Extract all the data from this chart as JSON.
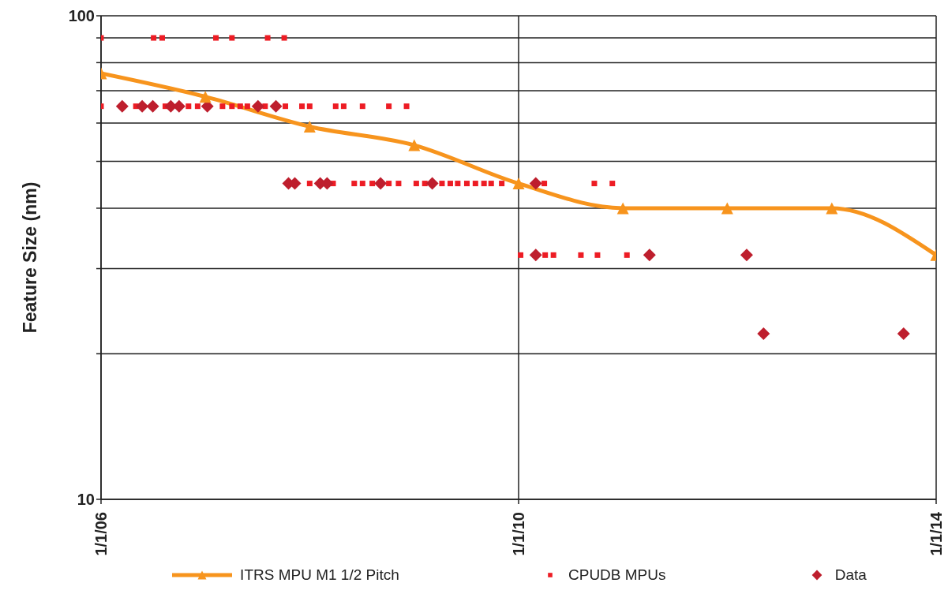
{
  "chart_data": {
    "type": "scatter",
    "ylabel": "Feature Size (nm)",
    "log": "y",
    "grid": true,
    "legend": "bottom",
    "xlim": [
      "2006-01-01",
      "2014-01-01"
    ],
    "xticks": [
      {
        "value": "2006-01-01",
        "label": "1/1/06"
      },
      {
        "value": "2010-01-01",
        "label": "1/1/10"
      },
      {
        "value": "2014-01-01",
        "label": "1/1/14"
      }
    ],
    "ylim": [
      10,
      100
    ],
    "yticks": [
      10,
      {
        "value": 20,
        "label": null
      },
      {
        "value": 30,
        "label": null
      },
      {
        "value": 40,
        "label": null
      },
      {
        "value": 50,
        "label": null
      },
      {
        "value": 60,
        "label": null
      },
      {
        "value": 70,
        "label": null
      },
      {
        "value": 80,
        "label": null
      },
      {
        "value": 90,
        "label": null
      },
      100
    ],
    "series": [
      {
        "name": "ITRS MPU M1 1/2 Pitch",
        "type": "line",
        "marker": "triangle",
        "line_style": "solid",
        "color": "#f7941d",
        "x": [
          "2006-01-01",
          "2007-01-01",
          "2008-01-01",
          "2009-01-01",
          "2010-01-01",
          "2011-01-01",
          "2012-01-01",
          "2013-01-01",
          "2014-01-01"
        ],
        "values": [
          76,
          68,
          59,
          54,
          45,
          40,
          40,
          40,
          32
        ]
      },
      {
        "name": "CPUDB MPUs",
        "marker": "square",
        "color": "#ed1c24",
        "x": [
          "2006-01-01",
          "2006-07-04",
          "2006-08-03",
          "2007-02-07",
          "2007-04-04",
          "2007-08-07",
          "2007-10-04",
          "2006-01-01",
          "2006-05-03",
          "2006-06-20",
          "2006-08-14",
          "2006-10-11",
          "2006-11-03",
          "2006-12-05",
          "2007-03-02",
          "2007-04-04",
          "2007-05-03",
          "2007-05-28",
          "2007-07-29",
          "2007-10-08",
          "2007-12-05",
          "2008-01-01",
          "2008-04-01",
          "2008-04-29",
          "2008-07-04",
          "2008-10-04",
          "2008-12-05",
          "2008-01-01",
          "2008-03-23",
          "2008-06-05",
          "2008-07-04",
          "2008-08-07",
          "2008-10-04",
          "2008-11-07",
          "2009-01-08",
          "2009-02-07",
          "2009-04-08",
          "2009-05-07",
          "2009-06-02",
          "2009-07-04",
          "2009-08-03",
          "2009-09-02",
          "2009-09-27",
          "2009-11-03",
          "2010-01-01",
          "2010-04-01",
          "2010-09-23",
          "2010-11-25",
          "2010-01-08",
          "2010-04-04",
          "2010-05-03",
          "2010-08-07",
          "2010-10-04",
          "2011-01-15"
        ],
        "values": [
          90,
          90,
          90,
          90,
          90,
          90,
          90,
          65,
          65,
          null,
          65,
          null,
          65,
          65,
          65,
          65,
          65,
          65,
          65,
          65,
          65,
          65,
          65,
          65,
          65,
          65,
          65,
          45,
          45,
          45,
          45,
          45,
          45,
          45,
          45,
          45,
          45,
          45,
          45,
          45,
          45,
          45,
          45,
          45,
          null,
          45,
          45,
          45,
          32,
          32,
          32,
          32,
          32,
          32
        ]
      },
      {
        "name": "Data",
        "marker": "diamond",
        "color": "#be1e2d",
        "x": [
          "2006-03-16",
          "2006-05-25",
          "2006-07-01",
          "2006-09-02",
          "2006-10-01",
          "2007-01-08",
          "2007-07-04",
          "2007-09-05",
          "2007-10-19",
          "2007-11-10",
          "2008-02-07",
          "2008-03-02",
          "2008-09-05",
          "2009-03-05",
          "2010-03-02",
          "2010-03-02",
          "2011-04-04",
          "2012-03-09",
          "2012-05-07",
          "2013-09-09"
        ],
        "values": [
          65,
          65,
          65,
          65,
          65,
          65,
          65,
          65,
          45,
          45,
          45,
          45,
          45,
          45,
          45,
          32,
          32,
          32,
          22,
          22
        ]
      }
    ]
  }
}
